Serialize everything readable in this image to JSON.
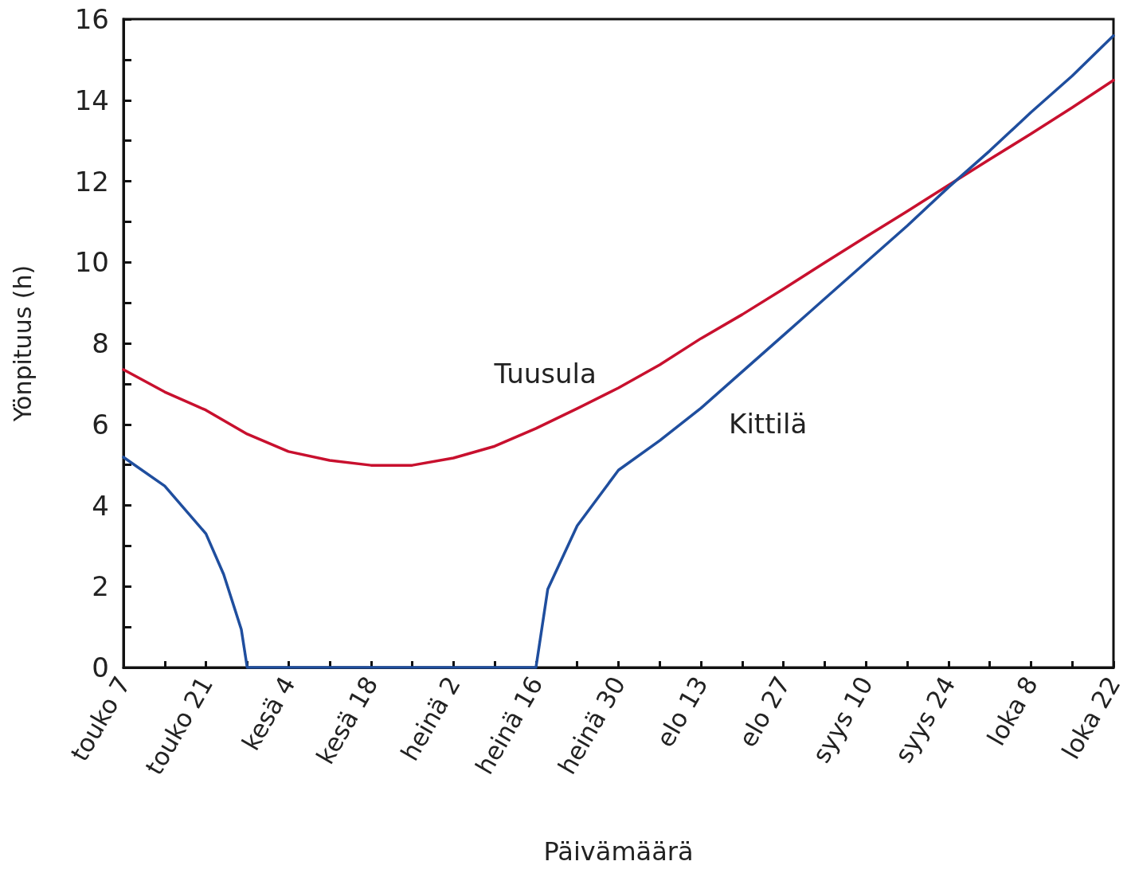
{
  "chart_data": {
    "type": "line",
    "xlabel": "Päivämäärä",
    "ylabel": "Yönpituus (h)",
    "xlim": [
      "--05-07",
      "--10-22"
    ],
    "xticks": [
      {
        "value": "--05-07",
        "label": "touko 7"
      },
      {
        "value": "--05-14",
        "label": null
      },
      {
        "value": "--05-21",
        "label": "touko 21"
      },
      {
        "value": "--05-28",
        "label": null
      },
      {
        "value": "--06-04",
        "label": "kesä 4"
      },
      {
        "value": "--06-11",
        "label": null
      },
      {
        "value": "--06-18",
        "label": "kesä 18"
      },
      {
        "value": "--06-25",
        "label": null
      },
      {
        "value": "--07-02",
        "label": "heinä 2"
      },
      {
        "value": "--07-09",
        "label": null
      },
      {
        "value": "--07-16",
        "label": "heinä 16"
      },
      {
        "value": "--07-23",
        "label": null
      },
      {
        "value": "--07-30",
        "label": "heinä 30"
      },
      {
        "value": "--08-06",
        "label": null
      },
      {
        "value": "--08-13",
        "label": "elo 13"
      },
      {
        "value": "--08-20",
        "label": null
      },
      {
        "value": "--08-27",
        "label": "elo 27"
      },
      {
        "value": "--09-03",
        "label": null
      },
      {
        "value": "--09-10",
        "label": "syys 10"
      },
      {
        "value": "--09-17",
        "label": null
      },
      {
        "value": "--09-24",
        "label": "syys 24"
      },
      {
        "value": "--10-01",
        "label": null
      },
      {
        "value": "--10-08",
        "label": "loka 8"
      },
      {
        "value": "--10-15",
        "label": null
      },
      {
        "value": "--10-22",
        "label": "loka 22"
      }
    ],
    "ylim": [
      0,
      16
    ],
    "yticks": [
      0,
      {
        "value": 1,
        "label": null
      },
      2,
      {
        "value": 3,
        "label": null
      },
      4,
      {
        "value": 5,
        "label": null
      },
      6,
      {
        "value": 7,
        "label": null
      },
      8,
      {
        "value": 9,
        "label": null
      },
      10,
      {
        "value": 11,
        "label": null
      },
      12,
      {
        "value": 13,
        "label": null
      },
      14,
      {
        "value": 15,
        "label": null
      },
      16
    ],
    "grid": false,
    "legend": false,
    "marker": "none",
    "line_style": "solid",
    "series": [
      {
        "name": "Tuusula",
        "color": "#c8102e",
        "x": [
          "--05-07",
          "--05-14",
          "--05-21",
          "--05-28",
          "--06-04",
          "--06-11",
          "--06-18",
          "--06-25",
          "--07-02",
          "--07-09",
          "--07-16",
          "--07-23",
          "--07-30",
          "--08-06",
          "--08-13",
          "--08-20",
          "--08-27",
          "--09-03",
          "--09-10",
          "--09-17",
          "--09-24",
          "--10-01",
          "--10-08",
          "--10-15",
          "--10-22"
        ],
        "values": [
          7.35,
          6.8,
          6.35,
          5.76,
          5.33,
          5.11,
          4.99,
          4.99,
          5.17,
          5.46,
          5.9,
          6.39,
          6.9,
          7.47,
          8.12,
          8.71,
          9.34,
          9.99,
          10.63,
          11.26,
          11.9,
          12.54,
          13.17,
          13.82,
          14.49
        ]
      },
      {
        "name": "Kittilä",
        "color": "#1f4e9e",
        "x": [
          "--05-07",
          "--05-14",
          "--05-21",
          "--05-24",
          "--05-27",
          "--05-28",
          "--06-15",
          "--07-16",
          "--07-18",
          "--07-23",
          "--07-30",
          "--08-06",
          "--08-13",
          "--08-20",
          "--08-27",
          "--09-03",
          "--09-10",
          "--09-17",
          "--09-24",
          "--10-01",
          "--10-08",
          "--10-15",
          "--10-22"
        ],
        "values": [
          5.19,
          4.48,
          3.3,
          2.3,
          0.94,
          0,
          0,
          0,
          1.93,
          3.5,
          4.87,
          5.6,
          6.4,
          7.3,
          8.2,
          9.1,
          10.0,
          10.9,
          11.85,
          12.75,
          13.7,
          14.6,
          15.59
        ]
      }
    ]
  }
}
